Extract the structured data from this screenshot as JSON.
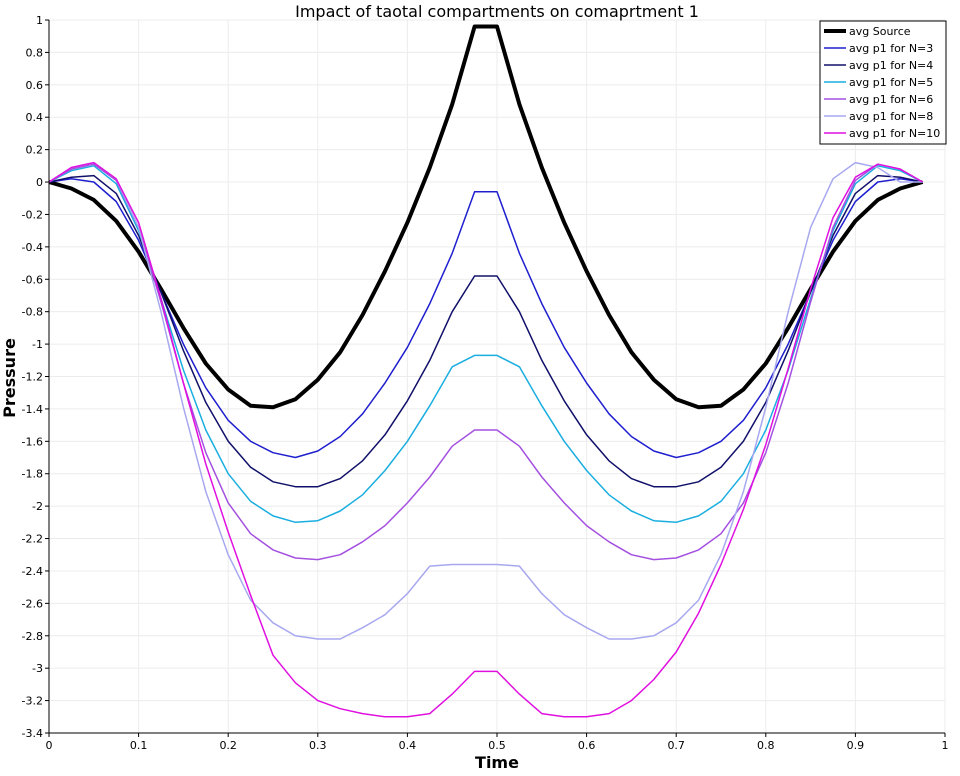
{
  "chart_data": {
    "type": "line",
    "title": "Impact of taotal compartments on comaprtment 1",
    "xlabel": "Time",
    "ylabel": "Pressure",
    "xlim": [
      0,
      1
    ],
    "ylim": [
      -3.4,
      1
    ],
    "xticks": [
      0,
      0.1,
      0.2,
      0.3,
      0.4,
      0.5,
      0.6,
      0.7,
      0.8,
      0.9,
      1
    ],
    "yticks": [
      1,
      0.8,
      0.6,
      0.4,
      0.2,
      0,
      -0.2,
      -0.4,
      -0.6,
      -0.8,
      -1,
      -1.2,
      -1.4,
      -1.6,
      -1.8,
      -2,
      -2.2,
      -2.4,
      -2.6,
      -2.8,
      -3,
      -3.2,
      -3.4
    ],
    "grid": true,
    "legend_position": "top-right",
    "x": [
      0,
      0.025,
      0.05,
      0.075,
      0.1,
      0.125,
      0.15,
      0.175,
      0.2,
      0.225,
      0.25,
      0.275,
      0.3,
      0.325,
      0.35,
      0.375,
      0.4,
      0.425,
      0.45,
      0.475,
      0.5,
      0.525,
      0.55,
      0.575,
      0.6,
      0.625,
      0.65,
      0.675,
      0.7,
      0.725,
      0.75,
      0.775,
      0.8,
      0.825,
      0.85,
      0.875,
      0.9,
      0.925,
      0.95,
      0.975
    ],
    "series": [
      {
        "name": "avg Source",
        "color": "#000000",
        "width": 4,
        "values": [
          0,
          -0.04,
          -0.11,
          -0.24,
          -0.43,
          -0.66,
          -0.9,
          -1.12,
          -1.28,
          -1.38,
          -1.39,
          -1.34,
          -1.22,
          -1.05,
          -0.82,
          -0.55,
          -0.25,
          0.09,
          0.48,
          0.96,
          0.96,
          0.48,
          0.09,
          -0.25,
          -0.55,
          -0.82,
          -1.05,
          -1.22,
          -1.34,
          -1.39,
          -1.38,
          -1.28,
          -1.12,
          -0.9,
          -0.66,
          -0.43,
          -0.24,
          -0.11,
          -0.04,
          0
        ]
      },
      {
        "name": "avg p1 for N=3",
        "color": "#1f1fcf",
        "width": 1.5,
        "values": [
          0,
          0.02,
          0,
          -0.12,
          -0.36,
          -0.68,
          -1.0,
          -1.27,
          -1.47,
          -1.6,
          -1.67,
          -1.7,
          -1.66,
          -1.57,
          -1.43,
          -1.24,
          -1.02,
          -0.75,
          -0.44,
          -0.06,
          -0.06,
          -0.44,
          -0.75,
          -1.02,
          -1.24,
          -1.43,
          -1.57,
          -1.66,
          -1.7,
          -1.67,
          -1.6,
          -1.47,
          -1.27,
          -1.0,
          -0.68,
          -0.36,
          -0.12,
          0,
          0.02,
          0
        ]
      },
      {
        "name": "avg p1 for N=4",
        "color": "#10106a",
        "width": 1.5,
        "values": [
          0,
          0.03,
          0.04,
          -0.07,
          -0.33,
          -0.68,
          -1.04,
          -1.36,
          -1.6,
          -1.76,
          -1.85,
          -1.88,
          -1.88,
          -1.83,
          -1.72,
          -1.56,
          -1.35,
          -1.1,
          -0.8,
          -0.58,
          -0.58,
          -0.8,
          -1.1,
          -1.35,
          -1.56,
          -1.72,
          -1.83,
          -1.88,
          -1.88,
          -1.85,
          -1.76,
          -1.6,
          -1.36,
          -1.04,
          -0.68,
          -0.33,
          -0.07,
          0.04,
          0.03,
          0
        ]
      },
      {
        "name": "avg p1 for N=5",
        "color": "#1aaee0",
        "width": 1.5,
        "values": [
          0,
          0.07,
          0.1,
          -0.01,
          -0.3,
          -0.72,
          -1.16,
          -1.53,
          -1.8,
          -1.97,
          -2.06,
          -2.1,
          -2.09,
          -2.03,
          -1.93,
          -1.78,
          -1.6,
          -1.38,
          -1.14,
          -1.07,
          -1.07,
          -1.14,
          -1.38,
          -1.6,
          -1.78,
          -1.93,
          -2.03,
          -2.09,
          -2.1,
          -2.06,
          -1.97,
          -1.8,
          -1.53,
          -1.16,
          -0.72,
          -0.3,
          -0.01,
          0.1,
          0.07,
          0
        ]
      },
      {
        "name": "avg p1 for N=6",
        "color": "#a450e0",
        "width": 1.5,
        "values": [
          0,
          0.08,
          0.11,
          0.01,
          -0.28,
          -0.74,
          -1.24,
          -1.67,
          -1.98,
          -2.17,
          -2.27,
          -2.32,
          -2.33,
          -2.3,
          -2.22,
          -2.12,
          -1.98,
          -1.82,
          -1.63,
          -1.53,
          -1.53,
          -1.63,
          -1.82,
          -1.98,
          -2.12,
          -2.22,
          -2.3,
          -2.33,
          -2.32,
          -2.27,
          -2.17,
          -1.98,
          -1.67,
          -1.24,
          -0.74,
          -0.28,
          0.01,
          0.11,
          0.08,
          0
        ]
      },
      {
        "name": "avg p1 for N=8",
        "color": "#a8a8f0",
        "width": 1.5,
        "values": [
          0,
          0.09,
          0.12,
          0.02,
          -0.28,
          -0.8,
          -1.39,
          -1.91,
          -2.3,
          -2.58,
          -2.72,
          -2.8,
          -2.82,
          -2.82,
          -2.75,
          -2.67,
          -2.54,
          -2.37,
          -2.36,
          -2.36,
          -2.36,
          -2.37,
          -2.54,
          -2.67,
          -2.75,
          -2.82,
          -2.82,
          -2.8,
          -2.72,
          -2.58,
          -2.3,
          -1.91,
          -1.39,
          -0.8,
          -0.28,
          0.02,
          0.12,
          0.09,
          0.0,
          0
        ]
      },
      {
        "name": "avg p1 for N=10",
        "color": "#e010e0",
        "width": 1.5,
        "values": [
          0,
          0.09,
          0.12,
          0.02,
          -0.25,
          -0.72,
          -1.24,
          -1.74,
          -2.16,
          -2.55,
          -2.92,
          -3.09,
          -3.2,
          -3.25,
          -3.28,
          -3.3,
          -3.3,
          -3.28,
          -3.16,
          -3.02,
          -3.02,
          -3.16,
          -3.28,
          -3.3,
          -3.3,
          -3.28,
          -3.2,
          -3.07,
          -2.9,
          -2.66,
          -2.36,
          -2.02,
          -1.62,
          -1.15,
          -0.66,
          -0.22,
          0.03,
          0.11,
          0.08,
          0
        ]
      }
    ]
  }
}
